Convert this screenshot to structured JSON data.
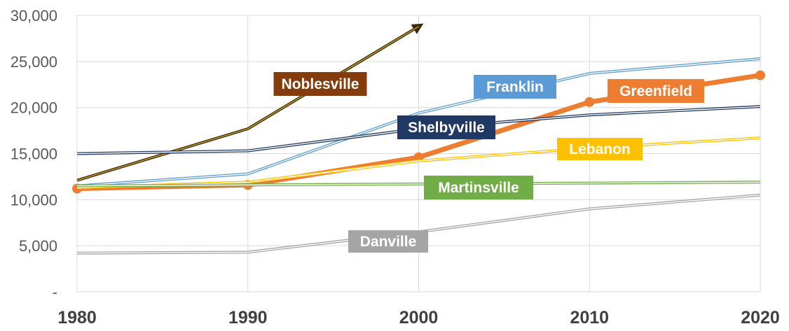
{
  "chart_data": {
    "type": "line",
    "title": "",
    "xlabel": "",
    "ylabel": "",
    "x": [
      1980,
      1990,
      2000,
      2010,
      2020
    ],
    "x_tick_labels": [
      "1980",
      "1990",
      "2000",
      "2010",
      "2020"
    ],
    "y_tick_labels": [
      "-",
      "5,000",
      "10,000",
      "15,000",
      "20,000",
      "25,000",
      "30,000"
    ],
    "ylim": [
      0,
      30000
    ],
    "grid": "both",
    "legend": "inline labels",
    "series": [
      {
        "name": "Noblesville",
        "color": "#843c0c",
        "line_color": "#c9a21e",
        "style": "double",
        "values": [
          12100,
          17700,
          28800,
          null,
          null
        ],
        "arrow_end": true
      },
      {
        "name": "Franklin",
        "color": "#5b9bd5",
        "line_color": "#5b9bd5",
        "style": "double",
        "values": [
          11500,
          12800,
          19400,
          23700,
          25300
        ]
      },
      {
        "name": "Greenfield",
        "color": "#ed7d31",
        "line_color": "#ed7d31",
        "style": "thick",
        "values": [
          11200,
          11600,
          14600,
          20600,
          23500
        ]
      },
      {
        "name": "Shelbyville",
        "color": "#1f3864",
        "line_color": "#1f3864",
        "style": "double",
        "values": [
          15000,
          15300,
          17700,
          19200,
          20100
        ]
      },
      {
        "name": "Lebanon",
        "color": "#ffc000",
        "line_color": "#ffc000",
        "style": "double",
        "values": [
          11300,
          11900,
          14200,
          15600,
          16700
        ]
      },
      {
        "name": "Martinsville",
        "color": "#70ad47",
        "line_color": "#70ad47",
        "style": "double",
        "values": [
          11500,
          11600,
          11700,
          11800,
          11900
        ]
      },
      {
        "name": "Danville",
        "color": "#a5a5a5",
        "line_color": "#a5a5a5",
        "style": "double",
        "values": [
          4200,
          4300,
          6500,
          9000,
          10500
        ]
      }
    ]
  }
}
